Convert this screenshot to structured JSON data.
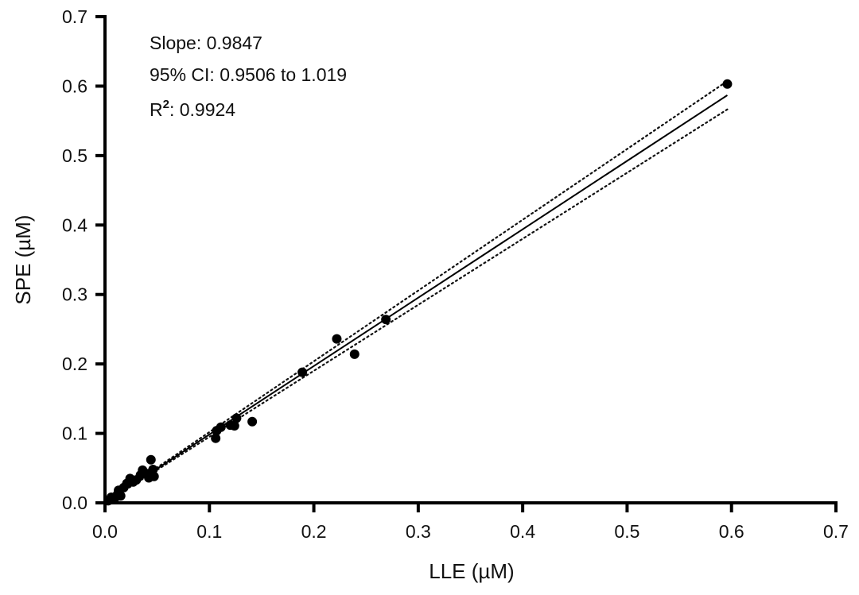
{
  "chart_data": {
    "type": "scatter",
    "xlabel": "LLE (µM)",
    "ylabel": "SPE (µM)",
    "xlim": [
      0,
      0.7
    ],
    "ylim": [
      0,
      0.7
    ],
    "xticks": [
      "0.0",
      "0.1",
      "0.2",
      "0.3",
      "0.4",
      "0.5",
      "0.6",
      "0.7"
    ],
    "yticks": [
      "0.0",
      "0.1",
      "0.2",
      "0.3",
      "0.4",
      "0.5",
      "0.6",
      "0.7"
    ],
    "grid": false,
    "annotations": {
      "slope": "Slope: 0.9847",
      "ci": "95% CI: 0.9506 to 1.019",
      "r2_prefix": "R",
      "r2_sup": "2",
      "r2_value": ": 0.9924"
    },
    "points": [
      {
        "x": 0.003,
        "y": 0.003
      },
      {
        "x": 0.006,
        "y": 0.008
      },
      {
        "x": 0.009,
        "y": 0.006
      },
      {
        "x": 0.012,
        "y": 0.012
      },
      {
        "x": 0.013,
        "y": 0.018
      },
      {
        "x": 0.015,
        "y": 0.01
      },
      {
        "x": 0.018,
        "y": 0.022
      },
      {
        "x": 0.021,
        "y": 0.028
      },
      {
        "x": 0.024,
        "y": 0.035
      },
      {
        "x": 0.027,
        "y": 0.03
      },
      {
        "x": 0.03,
        "y": 0.033
      },
      {
        "x": 0.034,
        "y": 0.04
      },
      {
        "x": 0.036,
        "y": 0.047
      },
      {
        "x": 0.04,
        "y": 0.042
      },
      {
        "x": 0.042,
        "y": 0.036
      },
      {
        "x": 0.044,
        "y": 0.062
      },
      {
        "x": 0.046,
        "y": 0.048
      },
      {
        "x": 0.047,
        "y": 0.038
      },
      {
        "x": 0.106,
        "y": 0.093
      },
      {
        "x": 0.107,
        "y": 0.104
      },
      {
        "x": 0.111,
        "y": 0.109
      },
      {
        "x": 0.12,
        "y": 0.112
      },
      {
        "x": 0.124,
        "y": 0.111
      },
      {
        "x": 0.126,
        "y": 0.122
      },
      {
        "x": 0.141,
        "y": 0.117
      },
      {
        "x": 0.189,
        "y": 0.188
      },
      {
        "x": 0.222,
        "y": 0.236
      },
      {
        "x": 0.239,
        "y": 0.214
      },
      {
        "x": 0.269,
        "y": 0.264
      },
      {
        "x": 0.596,
        "y": 0.603
      }
    ],
    "fit": {
      "slope": 0.9847,
      "intercept": 0.0,
      "x_range": [
        0,
        0.596
      ]
    },
    "ci_upper": {
      "x": [
        0,
        0.596
      ],
      "y": [
        0.0,
        0.6073
      ]
    },
    "ci_lower": {
      "x": [
        0,
        0.596
      ],
      "y": [
        0.0,
        0.5665
      ]
    },
    "colors": {
      "axis": "#000000",
      "points": "#000000",
      "text": "#111111"
    }
  }
}
